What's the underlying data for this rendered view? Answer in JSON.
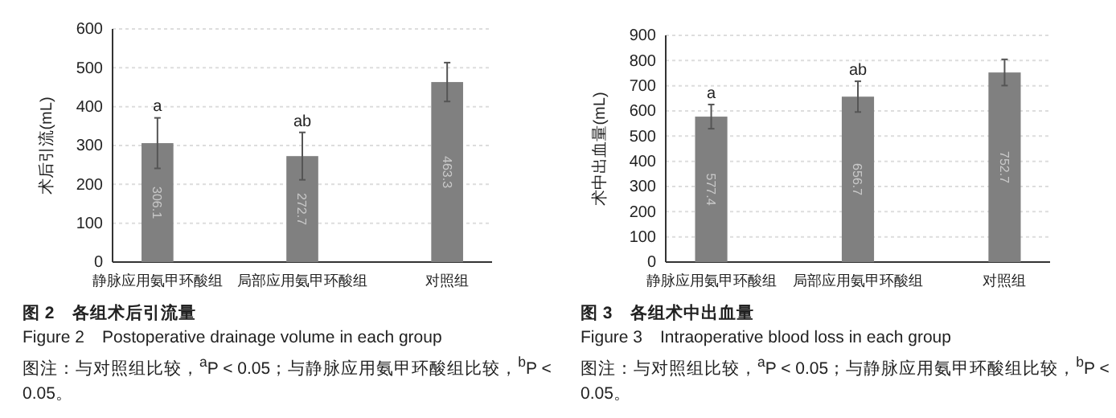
{
  "chart_data": [
    {
      "type": "bar",
      "title": "图 2　各组术后引流量",
      "subtitle": "Figure 2　Postoperative drainage volume in each group",
      "ylabel": "术后引流(mL)",
      "categories": [
        "静脉应用氨甲环酸组",
        "局部应用氨甲环酸组",
        "对照组"
      ],
      "values": [
        306.1,
        272.7,
        463.3
      ],
      "errors": [
        65,
        61,
        50
      ],
      "color": "#808080",
      "data_labels": true,
      "ylim": [
        0,
        600
      ],
      "yticks": [
        0,
        100,
        200,
        300,
        400,
        500,
        600
      ],
      "grid": "y",
      "annotations": [
        {
          "text": "a",
          "x": "静脉应用氨甲环酸组",
          "y": 372
        },
        {
          "text": "ab",
          "x": "局部应用氨甲环酸组",
          "y": 334
        },
        "图注：与对照组比较，$^{a}$P < 0.05；与静脉应用氨甲环酸组比较，$^{b}$P < 0.05。"
      ]
    },
    {
      "type": "bar",
      "title": "图 3　各组术中出血量",
      "subtitle": "Figure 3　Intraoperative blood loss in each group",
      "ylabel": "术中出血量(mL)",
      "categories": [
        "静脉应用氨甲环酸组",
        "局部应用氨甲环酸组",
        "对照组"
      ],
      "values": [
        577.4,
        656.7,
        752.7
      ],
      "errors": [
        48,
        61,
        52
      ],
      "color": "#808080",
      "data_labels": true,
      "ylim": [
        0,
        900
      ],
      "yticks": [
        0,
        100,
        200,
        300,
        400,
        500,
        600,
        700,
        800,
        900
      ],
      "grid": "y",
      "annotations": [
        {
          "text": "a",
          "x": "静脉应用氨甲环酸组",
          "y": 626
        },
        {
          "text": "ab",
          "x": "局部应用氨甲环酸组",
          "y": 718
        },
        "图注：与对照组比较，$^{a}$P < 0.05；与静脉应用氨甲环酸组比较，$^{b}$P < 0.05。"
      ]
    }
  ]
}
